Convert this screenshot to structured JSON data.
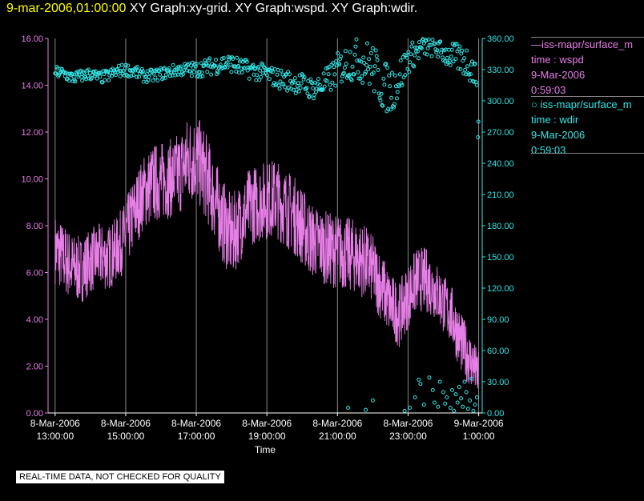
{
  "header": {
    "timestamp": "9-mar-2006,01:00:00",
    "graph_titles": "XY Graph:xy-grid.  XY Graph:wspd.  XY Graph:wdir."
  },
  "legend": {
    "wspd": {
      "name": "iss-mapr/surface_m",
      "line2": "time : wspd",
      "line3": "9-Mar-2006",
      "line4": "0:59:03"
    },
    "wdir": {
      "name": "iss-mapr/surface_m",
      "line2": "time : wdir",
      "line3": "9-Mar-2006",
      "line4": "0:59:03"
    }
  },
  "disclaimer": "REAL-TIME DATA, NOT CHECKED FOR QUALITY",
  "colors": {
    "wspd": "#e87ee8",
    "wdir": "#33e6e6",
    "grid": "#888888",
    "timestamp": "#ffff00"
  },
  "chart_data": {
    "type": "line",
    "xlabel": "Time",
    "x_range_hours": [
      12.8,
      25.1
    ],
    "x_ticks": [
      {
        "h": 13,
        "l1": "8-Mar-2006",
        "l2": "13:00:00"
      },
      {
        "h": 15,
        "l1": "8-Mar-2006",
        "l2": "15:00:00"
      },
      {
        "h": 17,
        "l1": "8-Mar-2006",
        "l2": "17:00:00"
      },
      {
        "h": 19,
        "l1": "8-Mar-2006",
        "l2": "19:00:00"
      },
      {
        "h": 21,
        "l1": "8-Mar-2006",
        "l2": "21:00:00"
      },
      {
        "h": 23,
        "l1": "8-Mar-2006",
        "l2": "23:00:00"
      },
      {
        "h": 25,
        "l1": "9-Mar-2006",
        "l2": "1:00:00"
      }
    ],
    "y_left": {
      "ylim": [
        0,
        16
      ],
      "ticks": [
        "0.00",
        "2.00",
        "4.00",
        "6.00",
        "8.00",
        "10.00",
        "12.00",
        "14.00",
        "16.00"
      ]
    },
    "y_right": {
      "ylim": [
        0,
        360
      ],
      "ticks": [
        "0.00",
        "30.00",
        "60.00",
        "90.00",
        "120.00",
        "150.00",
        "180.00",
        "210.00",
        "240.00",
        "270.00",
        "300.00",
        "330.00",
        "360.00"
      ]
    },
    "grid": "vertical",
    "series": [
      {
        "key": "wspd",
        "axis": "left",
        "style": "line",
        "hours": [
          13.0,
          13.25,
          13.5,
          13.75,
          14.0,
          14.25,
          14.5,
          14.75,
          15.0,
          15.25,
          15.5,
          15.75,
          16.0,
          16.25,
          16.5,
          16.75,
          17.0,
          17.25,
          17.5,
          17.75,
          18.0,
          18.25,
          18.5,
          18.75,
          19.0,
          19.25,
          19.5,
          19.75,
          20.0,
          20.25,
          20.5,
          20.75,
          21.0,
          21.25,
          21.5,
          21.75,
          22.0,
          22.25,
          22.5,
          22.75,
          23.0,
          23.25,
          23.5,
          23.75,
          24.0,
          24.25,
          24.5,
          24.75,
          25.0
        ],
        "mean": [
          7.0,
          6.6,
          6.2,
          6.1,
          6.5,
          6.7,
          6.6,
          7.0,
          7.6,
          8.6,
          9.4,
          9.8,
          9.9,
          10.0,
          10.2,
          10.8,
          10.9,
          10.2,
          9.2,
          8.2,
          7.5,
          8.2,
          8.8,
          9.0,
          9.1,
          9.2,
          8.8,
          8.5,
          8.0,
          7.4,
          7.2,
          7.0,
          6.9,
          6.8,
          6.7,
          6.5,
          6.1,
          5.4,
          4.6,
          4.2,
          5.0,
          5.7,
          5.7,
          5.3,
          4.7,
          4.1,
          3.0,
          2.3,
          1.6
        ],
        "amp": [
          1.5,
          1.5,
          1.5,
          1.4,
          1.4,
          1.4,
          1.4,
          1.4,
          1.5,
          1.6,
          1.6,
          1.7,
          1.7,
          1.7,
          1.8,
          1.9,
          1.9,
          1.9,
          1.8,
          1.8,
          1.8,
          1.7,
          1.7,
          1.7,
          1.7,
          1.7,
          1.7,
          1.7,
          1.7,
          1.6,
          1.6,
          1.6,
          1.6,
          1.6,
          1.6,
          1.6,
          1.5,
          1.5,
          1.4,
          1.4,
          1.4,
          1.4,
          1.4,
          1.3,
          1.3,
          1.3,
          1.3,
          1.2,
          1.0
        ]
      },
      {
        "key": "wdir",
        "axis": "right",
        "style": "scatter",
        "hours": [
          13.0,
          13.25,
          13.5,
          13.75,
          14.0,
          14.25,
          14.5,
          14.75,
          15.0,
          15.25,
          15.5,
          15.75,
          16.0,
          16.25,
          16.5,
          16.75,
          17.0,
          17.25,
          17.5,
          17.75,
          18.0,
          18.25,
          18.5,
          18.75,
          19.0,
          19.25,
          19.5,
          19.75,
          20.0,
          20.25,
          20.5,
          20.75,
          21.0,
          21.25,
          21.5,
          21.75,
          22.0,
          22.25,
          22.5,
          22.75,
          23.0,
          23.25,
          23.5,
          23.75,
          24.0,
          24.25,
          24.5,
          24.75,
          25.0
        ],
        "mean": [
          328,
          326,
          322,
          324,
          326,
          322,
          324,
          328,
          330,
          328,
          324,
          324,
          326,
          328,
          330,
          330,
          330,
          332,
          334,
          336,
          336,
          332,
          330,
          328,
          326,
          322,
          320,
          318,
          316,
          312,
          314,
          320,
          330,
          336,
          340,
          338,
          332,
          316,
          310,
          322,
          340,
          348,
          352,
          352,
          346,
          342,
          340,
          336,
          318
        ],
        "spread": [
          6,
          6,
          6,
          6,
          6,
          6,
          6,
          6,
          6,
          6,
          6,
          6,
          6,
          6,
          6,
          7,
          8,
          8,
          9,
          9,
          9,
          9,
          9,
          9,
          9,
          10,
          10,
          10,
          11,
          11,
          12,
          14,
          16,
          18,
          20,
          22,
          24,
          24,
          24,
          20,
          14,
          12,
          10,
          10,
          10,
          14,
          14,
          18,
          10
        ]
      },
      {
        "key": "wdir_low",
        "axis": "right",
        "style": "scatter",
        "hours": [
          21.3,
          21.8,
          22.0,
          22.9,
          23.05,
          23.2,
          23.3,
          23.35,
          23.45,
          23.6,
          23.7,
          23.75,
          23.85,
          23.9,
          24.0,
          24.05,
          24.1,
          24.2,
          24.25,
          24.3,
          24.35,
          24.4,
          24.45,
          24.5,
          24.55,
          24.6,
          24.65,
          24.7,
          24.75,
          24.8,
          24.85,
          24.9,
          24.95,
          24.98,
          24.99
        ],
        "values": [
          5,
          3,
          12,
          2,
          5,
          15,
          32,
          28,
          8,
          34,
          22,
          10,
          6,
          30,
          20,
          9,
          15,
          5,
          22,
          2,
          18,
          10,
          25,
          14,
          6,
          30,
          20,
          4,
          12,
          33,
          2,
          8,
          15,
          265,
          280
        ]
      }
    ]
  }
}
